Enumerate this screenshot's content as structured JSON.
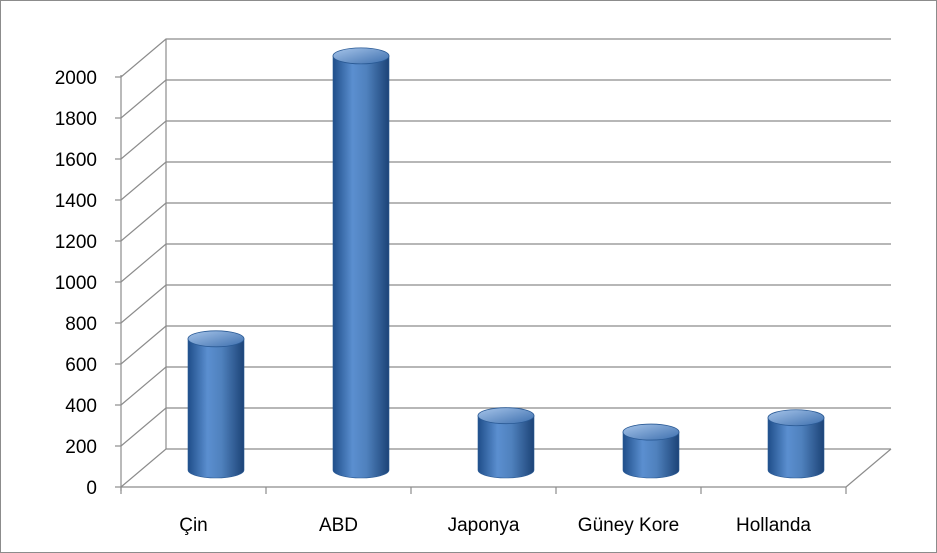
{
  "chart_data": {
    "type": "bar",
    "style": "3d-cylinder",
    "categories": [
      "Çin",
      "ABD",
      "Japonya",
      "Güney Kore",
      "Hollanda"
    ],
    "values": [
      640,
      2020,
      265,
      185,
      255
    ],
    "ylim": [
      0,
      2000
    ],
    "yticks": [
      0,
      200,
      400,
      600,
      800,
      1000,
      1200,
      1400,
      1600,
      1800,
      2000
    ],
    "grid": true,
    "legend": "none",
    "colors": {
      "bar": "#4f81bd",
      "bar_dark": "#1f4e8a",
      "bar_light": "#8fb4e3",
      "grid": "#8c8c8c"
    }
  }
}
